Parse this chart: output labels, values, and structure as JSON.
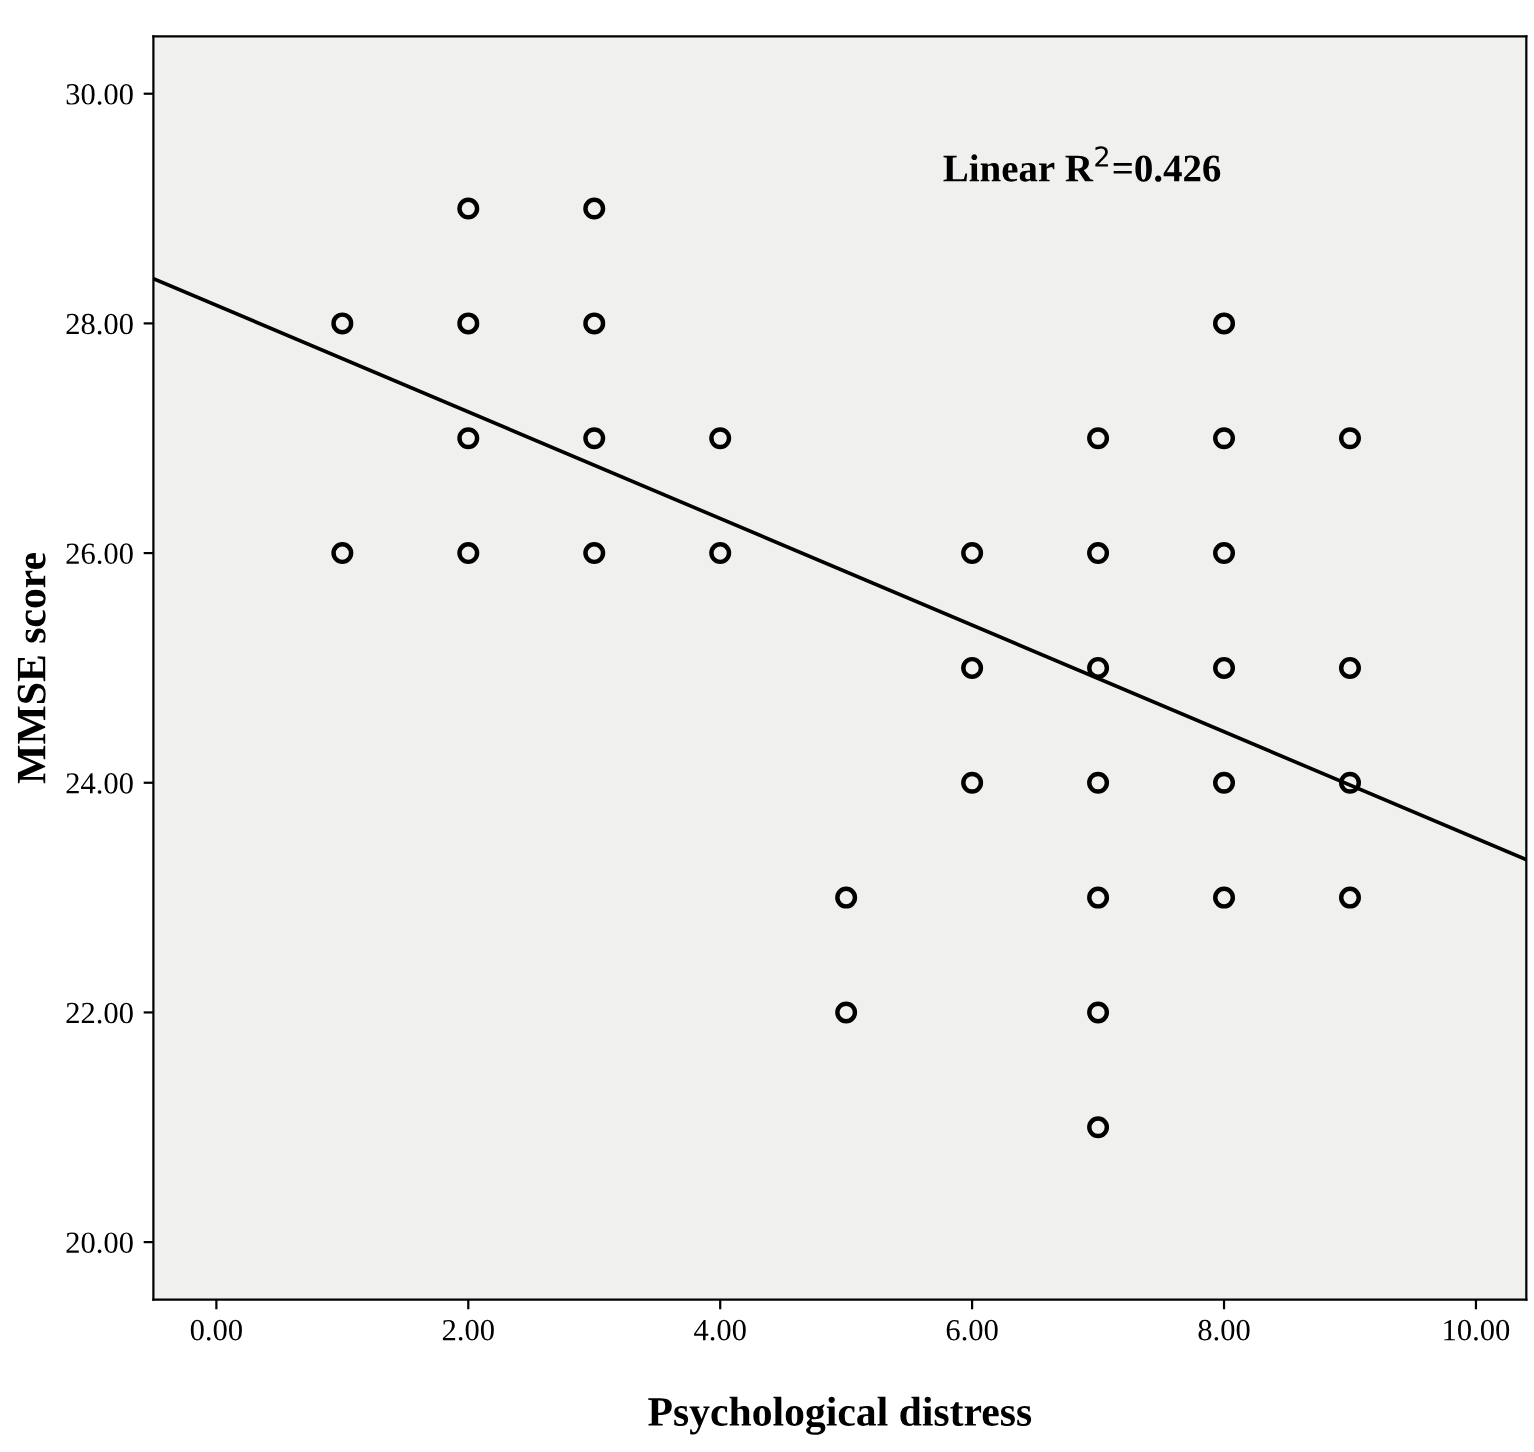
{
  "chart_data": {
    "type": "scatter",
    "xlabel": "Psychological distress",
    "ylabel": "MMSE score",
    "annotations": [
      "Linear R$^{2}$=0.426"
    ],
    "xlim": [
      -0.5,
      10.4
    ],
    "ylim": [
      19.5,
      30.5
    ],
    "xticks": [
      {
        "value": 0,
        "label": "0.00"
      },
      {
        "value": 2,
        "label": "2.00"
      },
      {
        "value": 4,
        "label": "4.00"
      },
      {
        "value": 6,
        "label": "6.00"
      },
      {
        "value": 8,
        "label": "8.00"
      },
      {
        "value": 10,
        "label": "10.00"
      }
    ],
    "yticks": [
      {
        "value": 20,
        "label": "20.00"
      },
      {
        "value": 22,
        "label": "22.00"
      },
      {
        "value": 24,
        "label": "24.00"
      },
      {
        "value": 26,
        "label": "26.00"
      },
      {
        "value": 28,
        "label": "28.00"
      },
      {
        "value": 30,
        "label": "30.00"
      }
    ],
    "grid": false,
    "legend": false,
    "series": [
      {
        "marker": "circle",
        "color": "#000000",
        "x": [
          1,
          1,
          2,
          2,
          2,
          2,
          3,
          3,
          3,
          3,
          4,
          4,
          5,
          5,
          6,
          6,
          6,
          7,
          7,
          7,
          7,
          7,
          7,
          7,
          8,
          8,
          8,
          8,
          8,
          8,
          9,
          9,
          9,
          9
        ],
        "values": [
          28,
          26,
          29,
          28,
          27,
          26,
          29,
          28,
          27,
          26,
          27,
          26,
          23,
          22,
          26,
          25,
          24,
          27,
          26,
          25,
          24,
          23,
          22,
          21,
          28,
          27,
          26,
          25,
          24,
          23,
          27,
          25,
          24,
          23
        ]
      },
      {
        "type": "line",
        "color": "#000000",
        "line_style": "solid",
        "x": [
          -0.5,
          10.4
        ],
        "values": [
          28.39,
          23.33
        ]
      }
    ]
  }
}
